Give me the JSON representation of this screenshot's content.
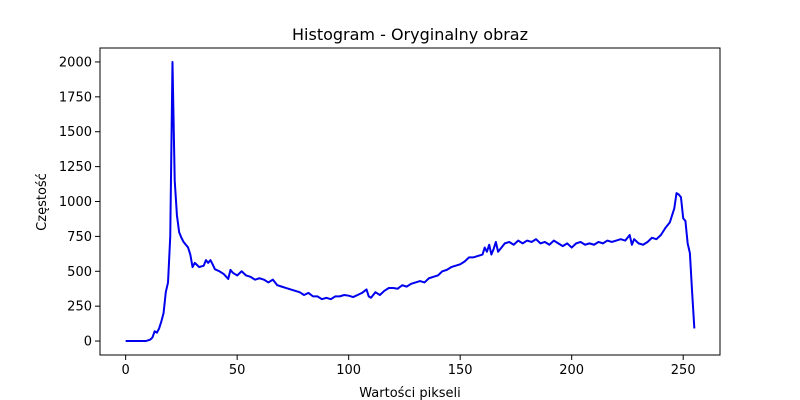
{
  "chart_data": {
    "type": "line",
    "title": "Histogram - Oryginalny obraz",
    "xlabel": "Wartości pikseli",
    "ylabel": "Częstość",
    "xlim": [
      -11.5,
      266.5
    ],
    "ylim": [
      -100,
      2100
    ],
    "xticks": [
      0,
      50,
      100,
      150,
      200,
      250
    ],
    "yticks": [
      0,
      250,
      500,
      750,
      1000,
      1250,
      1500,
      1750,
      2000
    ],
    "grid": false,
    "series": [
      {
        "color": "#0000ee",
        "points": [
          [
            0,
            0
          ],
          [
            9,
            0
          ],
          [
            11,
            10
          ],
          [
            12,
            25
          ],
          [
            13,
            70
          ],
          [
            14,
            60
          ],
          [
            15,
            90
          ],
          [
            16,
            140
          ],
          [
            17,
            200
          ],
          [
            18,
            350
          ],
          [
            19,
            420
          ],
          [
            20,
            750
          ],
          [
            21,
            2000
          ],
          [
            22,
            1150
          ],
          [
            23,
            900
          ],
          [
            24,
            780
          ],
          [
            25,
            740
          ],
          [
            26,
            710
          ],
          [
            27,
            690
          ],
          [
            28,
            670
          ],
          [
            29,
            620
          ],
          [
            30,
            530
          ],
          [
            31,
            560
          ],
          [
            32,
            545
          ],
          [
            33,
            530
          ],
          [
            35,
            540
          ],
          [
            36,
            580
          ],
          [
            37,
            560
          ],
          [
            38,
            580
          ],
          [
            39,
            550
          ],
          [
            40,
            515
          ],
          [
            42,
            500
          ],
          [
            44,
            480
          ],
          [
            46,
            445
          ],
          [
            47,
            510
          ],
          [
            48,
            490
          ],
          [
            50,
            470
          ],
          [
            52,
            500
          ],
          [
            54,
            470
          ],
          [
            56,
            460
          ],
          [
            58,
            440
          ],
          [
            60,
            450
          ],
          [
            62,
            440
          ],
          [
            64,
            420
          ],
          [
            66,
            440
          ],
          [
            68,
            400
          ],
          [
            70,
            390
          ],
          [
            72,
            380
          ],
          [
            74,
            370
          ],
          [
            76,
            360
          ],
          [
            78,
            350
          ],
          [
            80,
            330
          ],
          [
            82,
            345
          ],
          [
            84,
            320
          ],
          [
            86,
            320
          ],
          [
            88,
            300
          ],
          [
            90,
            310
          ],
          [
            92,
            300
          ],
          [
            94,
            320
          ],
          [
            96,
            320
          ],
          [
            98,
            330
          ],
          [
            100,
            325
          ],
          [
            102,
            315
          ],
          [
            104,
            330
          ],
          [
            106,
            345
          ],
          [
            108,
            370
          ],
          [
            109,
            320
          ],
          [
            110,
            310
          ],
          [
            112,
            350
          ],
          [
            114,
            330
          ],
          [
            116,
            360
          ],
          [
            118,
            380
          ],
          [
            120,
            380
          ],
          [
            122,
            375
          ],
          [
            124,
            400
          ],
          [
            126,
            390
          ],
          [
            128,
            410
          ],
          [
            130,
            420
          ],
          [
            132,
            430
          ],
          [
            134,
            420
          ],
          [
            136,
            450
          ],
          [
            138,
            460
          ],
          [
            140,
            470
          ],
          [
            142,
            500
          ],
          [
            144,
            510
          ],
          [
            146,
            530
          ],
          [
            148,
            540
          ],
          [
            150,
            550
          ],
          [
            152,
            570
          ],
          [
            154,
            600
          ],
          [
            156,
            600
          ],
          [
            158,
            610
          ],
          [
            160,
            620
          ],
          [
            161,
            670
          ],
          [
            162,
            640
          ],
          [
            163,
            690
          ],
          [
            164,
            620
          ],
          [
            165,
            660
          ],
          [
            166,
            710
          ],
          [
            167,
            640
          ],
          [
            168,
            660
          ],
          [
            170,
            700
          ],
          [
            172,
            710
          ],
          [
            174,
            690
          ],
          [
            176,
            720
          ],
          [
            178,
            700
          ],
          [
            180,
            720
          ],
          [
            182,
            710
          ],
          [
            184,
            730
          ],
          [
            186,
            700
          ],
          [
            188,
            710
          ],
          [
            190,
            690
          ],
          [
            192,
            720
          ],
          [
            194,
            700
          ],
          [
            196,
            680
          ],
          [
            198,
            700
          ],
          [
            200,
            670
          ],
          [
            202,
            700
          ],
          [
            204,
            710
          ],
          [
            206,
            690
          ],
          [
            208,
            700
          ],
          [
            210,
            690
          ],
          [
            212,
            710
          ],
          [
            214,
            700
          ],
          [
            216,
            720
          ],
          [
            218,
            710
          ],
          [
            220,
            720
          ],
          [
            222,
            730
          ],
          [
            224,
            720
          ],
          [
            226,
            760
          ],
          [
            227,
            690
          ],
          [
            228,
            730
          ],
          [
            230,
            700
          ],
          [
            232,
            690
          ],
          [
            234,
            710
          ],
          [
            236,
            740
          ],
          [
            238,
            730
          ],
          [
            240,
            760
          ],
          [
            242,
            810
          ],
          [
            244,
            850
          ],
          [
            245,
            900
          ],
          [
            246,
            950
          ],
          [
            247,
            1060
          ],
          [
            248,
            1050
          ],
          [
            249,
            1030
          ],
          [
            250,
            880
          ],
          [
            251,
            860
          ],
          [
            252,
            700
          ],
          [
            253,
            630
          ],
          [
            254,
            350
          ],
          [
            255,
            90
          ]
        ]
      }
    ]
  }
}
